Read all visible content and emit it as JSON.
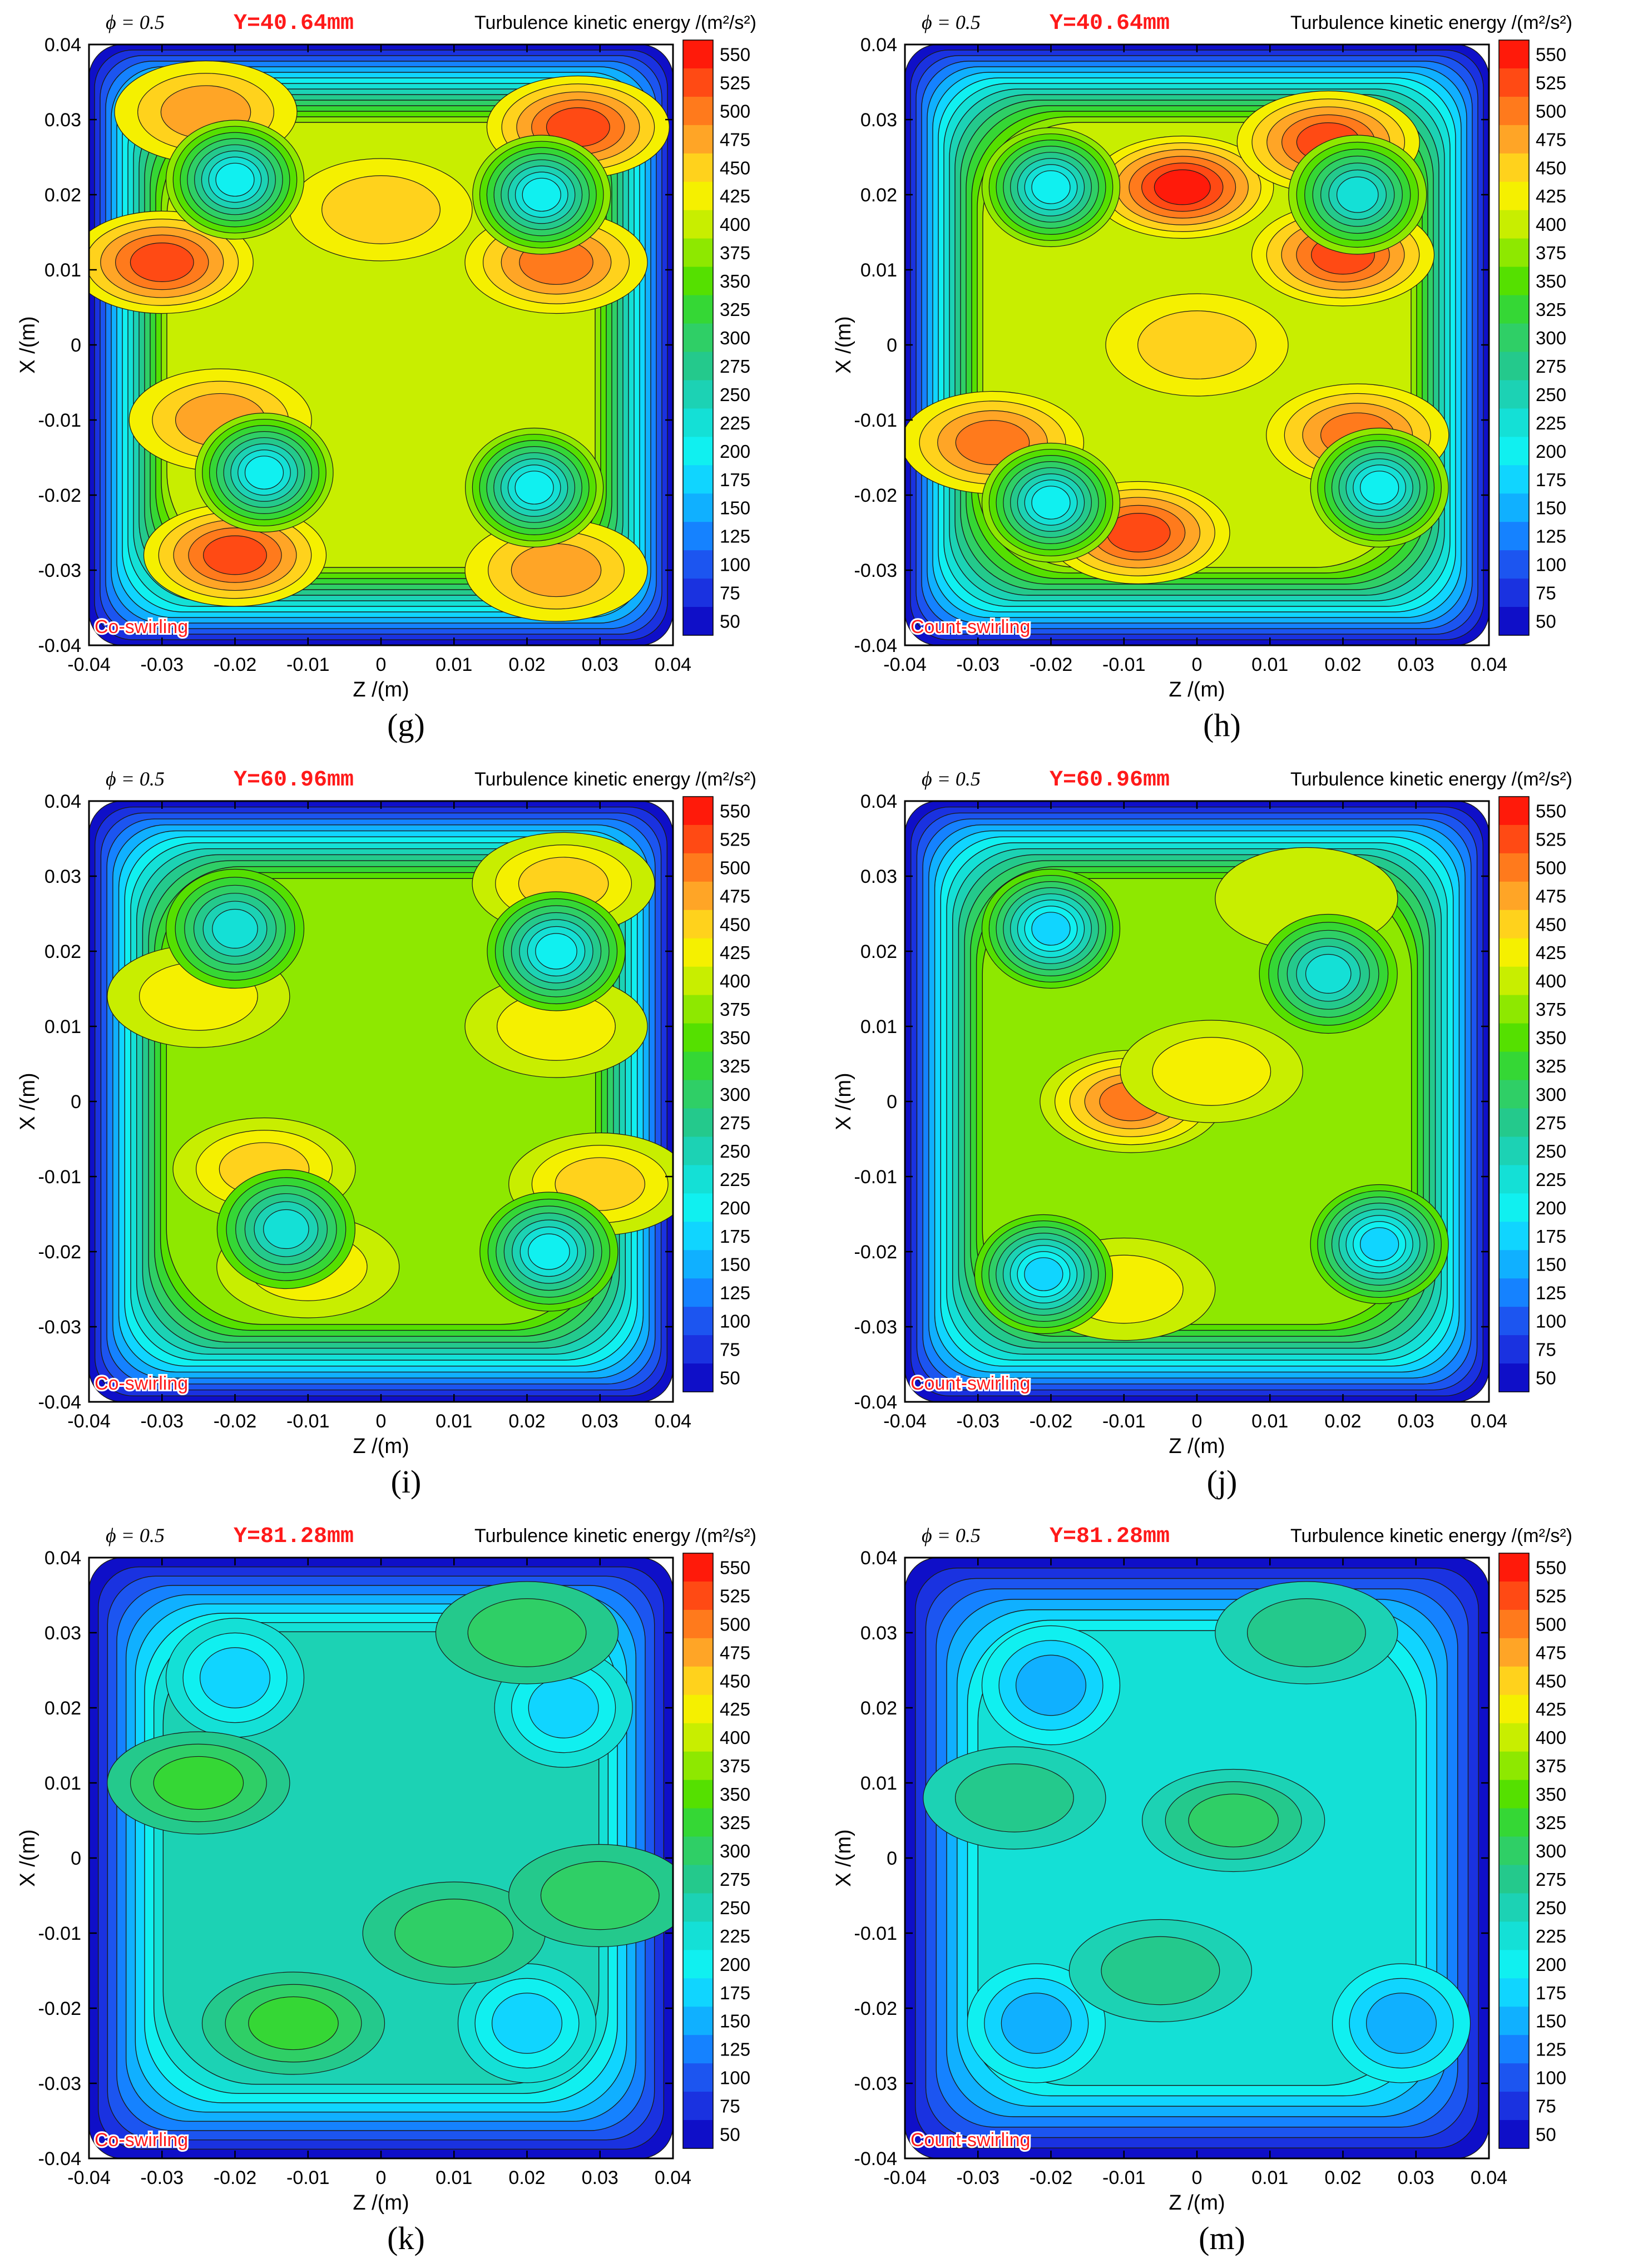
{
  "colorbar": {
    "levels": [
      550,
      525,
      500,
      475,
      450,
      425,
      400,
      375,
      350,
      325,
      300,
      275,
      250,
      225,
      200,
      175,
      150,
      125,
      100,
      75,
      50
    ],
    "colors": [
      "#ff1a0a",
      "#ff4a14",
      "#ff7a1c",
      "#ffa526",
      "#ffd21c",
      "#f5f000",
      "#c8ee00",
      "#8ee800",
      "#55e000",
      "#35d735",
      "#2fcf66",
      "#24c98c",
      "#1cd2b4",
      "#14e0d6",
      "#10f0f0",
      "#10d5ff",
      "#10b0ff",
      "#1582ff",
      "#1c55f0",
      "#1a32e0",
      "#0f0fc8"
    ]
  },
  "axes": {
    "xlabel": "Z /(m)",
    "ylabel": "X /(m)",
    "ticks": [
      "-0.04",
      "-0.03",
      "-0.02",
      "-0.01",
      "0",
      "0.01",
      "0.02",
      "0.03",
      "0.04"
    ],
    "range": [
      -0.04,
      0.04
    ]
  },
  "common": {
    "phi_label": "ϕ = 0.5",
    "cbar_title": "Turbulence kinetic energy /(m²/s²)"
  },
  "chart_data": [
    {
      "type": "heatmap",
      "panel": "g",
      "plane": "Y=40.64mm",
      "case": "Co-swirling",
      "caption": "(g)",
      "x": [
        -0.04,
        0.04
      ],
      "y": [
        -0.04,
        0.04
      ],
      "range": [
        50,
        550
      ],
      "hotspots": [
        {
          "z": 0.027,
          "x": 0.029,
          "value": 525
        },
        {
          "z": -0.03,
          "x": 0.011,
          "value": 530
        },
        {
          "z": -0.02,
          "x": -0.028,
          "value": 530
        },
        {
          "z": -0.024,
          "x": 0.031,
          "value": 470
        },
        {
          "z": 0.0,
          "x": 0.018,
          "value": 440
        },
        {
          "z": 0.024,
          "x": 0.011,
          "value": 490
        },
        {
          "z": 0.024,
          "x": -0.03,
          "value": 480
        },
        {
          "z": -0.022,
          "x": -0.01,
          "value": 470
        },
        {
          "z": -0.02,
          "x": 0.022,
          "value": 200
        },
        {
          "z": 0.022,
          "x": 0.02,
          "value": 200
        },
        {
          "z": -0.016,
          "x": -0.017,
          "value": 210
        },
        {
          "z": 0.021,
          "x": -0.019,
          "value": 200
        }
      ]
    },
    {
      "type": "heatmap",
      "panel": "h",
      "plane": "Y=40.64mm",
      "case": "Count-swirling",
      "caption": "(h)",
      "x": [
        -0.04,
        0.04
      ],
      "y": [
        -0.04,
        0.04
      ],
      "range": [
        50,
        550
      ],
      "hotspots": [
        {
          "z": -0.002,
          "x": 0.021,
          "value": 550
        },
        {
          "z": 0.018,
          "x": 0.027,
          "value": 530
        },
        {
          "z": 0.02,
          "x": 0.012,
          "value": 530
        },
        {
          "z": -0.028,
          "x": -0.013,
          "value": 510
        },
        {
          "z": -0.008,
          "x": -0.025,
          "value": 530
        },
        {
          "z": 0.022,
          "x": -0.012,
          "value": 490
        },
        {
          "z": 0.0,
          "x": 0.0,
          "value": 440
        },
        {
          "z": -0.02,
          "x": 0.021,
          "value": 200
        },
        {
          "z": 0.022,
          "x": 0.02,
          "value": 230
        },
        {
          "z": -0.02,
          "x": -0.021,
          "value": 200
        },
        {
          "z": 0.025,
          "x": -0.019,
          "value": 200
        }
      ]
    },
    {
      "type": "heatmap",
      "panel": "i",
      "plane": "Y=60.96mm",
      "case": "Co-swirling",
      "caption": "(i)",
      "x": [
        -0.04,
        0.04
      ],
      "y": [
        -0.04,
        0.04
      ],
      "range": [
        50,
        550
      ],
      "hotspots": [
        {
          "z": 0.025,
          "x": 0.029,
          "value": 440
        },
        {
          "z": -0.025,
          "x": 0.014,
          "value": 430
        },
        {
          "z": 0.024,
          "x": 0.01,
          "value": 430
        },
        {
          "z": -0.016,
          "x": -0.009,
          "value": 440
        },
        {
          "z": -0.01,
          "x": -0.022,
          "value": 430
        },
        {
          "z": 0.03,
          "x": -0.011,
          "value": 440
        },
        {
          "z": -0.02,
          "x": 0.023,
          "value": 220
        },
        {
          "z": 0.024,
          "x": 0.02,
          "value": 210
        },
        {
          "z": -0.013,
          "x": -0.017,
          "value": 220
        },
        {
          "z": 0.023,
          "x": -0.02,
          "value": 200
        }
      ]
    },
    {
      "type": "heatmap",
      "panel": "j",
      "plane": "Y=60.96mm",
      "case": "Count-swirling",
      "caption": "(j)",
      "x": [
        -0.04,
        0.04
      ],
      "y": [
        -0.04,
        0.04
      ],
      "range": [
        50,
        550
      ],
      "hotspots": [
        {
          "z": -0.009,
          "x": 0.0,
          "value": 520
        },
        {
          "z": 0.002,
          "x": 0.004,
          "value": 440
        },
        {
          "z": 0.015,
          "x": 0.027,
          "value": 430
        },
        {
          "z": -0.01,
          "x": -0.025,
          "value": 440
        },
        {
          "z": -0.02,
          "x": 0.023,
          "value": 200
        },
        {
          "z": 0.018,
          "x": 0.017,
          "value": 240
        },
        {
          "z": -0.021,
          "x": -0.023,
          "value": 200
        },
        {
          "z": 0.025,
          "x": -0.019,
          "value": 190
        }
      ]
    },
    {
      "type": "heatmap",
      "panel": "k",
      "plane": "Y=81.28mm",
      "case": "Co-swirling",
      "caption": "(k)",
      "x": [
        -0.04,
        0.04
      ],
      "y": [
        -0.04,
        0.04
      ],
      "range": [
        50,
        550
      ],
      "hotspots": [
        {
          "z": -0.02,
          "x": 0.024,
          "value": 180
        },
        {
          "z": 0.025,
          "x": 0.02,
          "value": 180
        },
        {
          "z": 0.02,
          "x": -0.022,
          "value": 180
        },
        {
          "z": -0.025,
          "x": 0.01,
          "value": 320
        },
        {
          "z": 0.02,
          "x": 0.03,
          "value": 315
        },
        {
          "z": -0.012,
          "x": -0.022,
          "value": 320
        },
        {
          "z": 0.01,
          "x": -0.01,
          "value": 310
        },
        {
          "z": 0.03,
          "x": -0.005,
          "value": 300
        }
      ]
    },
    {
      "type": "heatmap",
      "panel": "m",
      "plane": "Y=81.28mm",
      "case": "Count-swirling",
      "caption": "(m)",
      "x": [
        -0.04,
        0.04
      ],
      "y": [
        -0.04,
        0.04
      ],
      "range": [
        50,
        550
      ],
      "hotspots": [
        {
          "z": -0.02,
          "x": 0.023,
          "value": 170
        },
        {
          "z": 0.028,
          "x": -0.022,
          "value": 170
        },
        {
          "z": -0.022,
          "x": -0.022,
          "value": 165
        },
        {
          "z": 0.005,
          "x": 0.005,
          "value": 320
        },
        {
          "z": -0.025,
          "x": 0.008,
          "value": 305
        },
        {
          "z": 0.015,
          "x": 0.03,
          "value": 310
        },
        {
          "z": -0.005,
          "x": -0.015,
          "value": 300
        }
      ]
    }
  ]
}
